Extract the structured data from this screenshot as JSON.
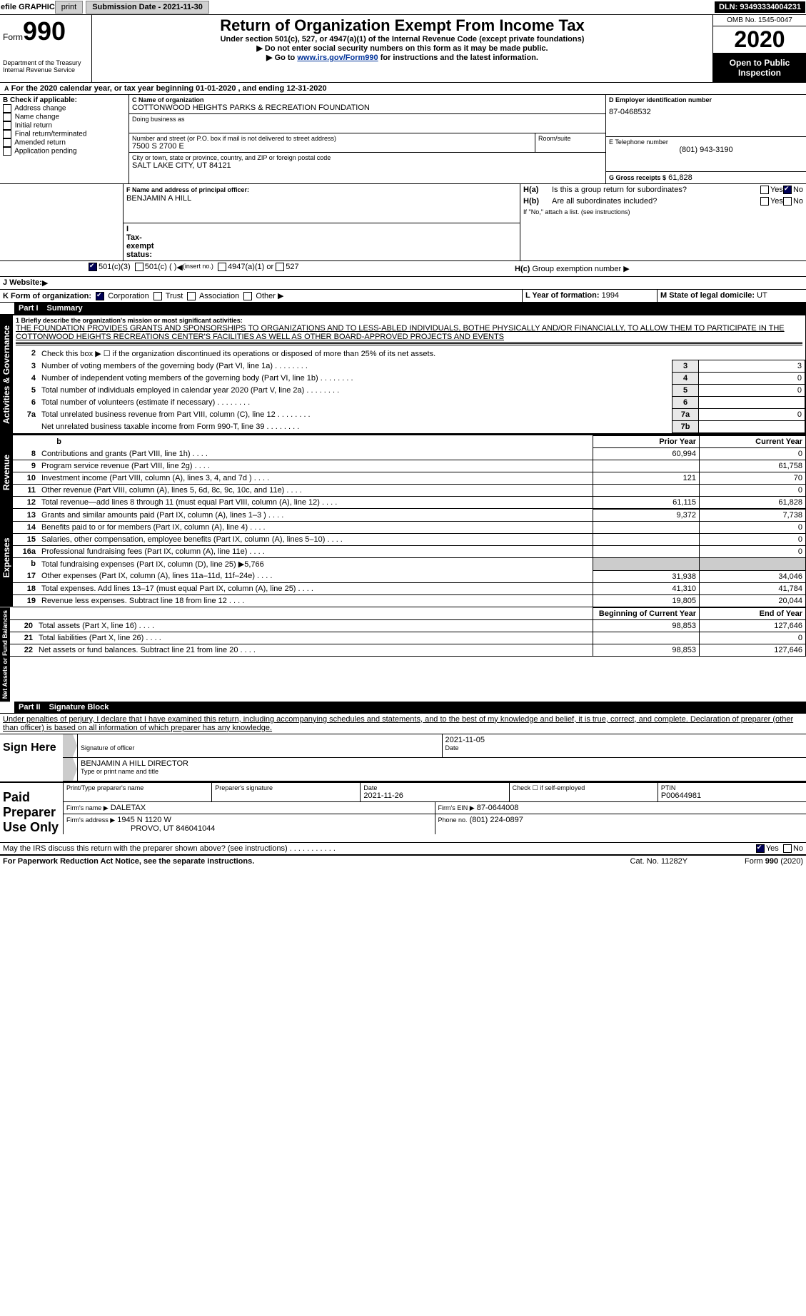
{
  "topbar": {
    "efile": "efile GRAPHIC",
    "print": "print",
    "subdate_label": "Submission Date - 2021-11-30",
    "dln_label": "DLN: 93493334004231"
  },
  "header": {
    "form_small": "Form",
    "form_num": "990",
    "dept": "Department of the Treasury\nInternal Revenue Service",
    "title": "Return of Organization Exempt From Income Tax",
    "sub1": "Under section 501(c), 527, or 4947(a)(1) of the Internal Revenue Code (except private foundations)",
    "sub2": "Do not enter social security numbers on this form as it may be made public.",
    "sub3_pre": "Go to ",
    "sub3_link": "www.irs.gov/Form990",
    "sub3_post": " for instructions and the latest information.",
    "omb": "OMB No. 1545-0047",
    "year": "2020",
    "open_pub": "Open to Public Inspection"
  },
  "period": {
    "text": "For the 2020 calendar year, or tax year beginning 01-01-2020    , and ending 12-31-2020",
    "prefix": "A"
  },
  "boxB": {
    "label": "B Check if applicable:",
    "items": [
      "Address change",
      "Name change",
      "Initial return",
      "Final return/terminated",
      "Amended return",
      "Application pending"
    ]
  },
  "boxC": {
    "name_lbl": "C Name of organization",
    "name": "COTTONWOOD HEIGHTS PARKS & RECREATION FOUNDATION",
    "dba_lbl": "Doing business as",
    "addr_lbl": "Number and street (or P.O. box if mail is not delivered to street address)",
    "room_lbl": "Room/suite",
    "addr": "7500 S 2700 E",
    "city_lbl": "City or town, state or province, country, and ZIP or foreign postal code",
    "city": "SALT LAKE CITY, UT  84121"
  },
  "boxD": {
    "lbl": "D Employer identification number",
    "val": "87-0468532"
  },
  "boxE": {
    "lbl": "E Telephone number",
    "val": "(801) 943-3190"
  },
  "boxG": {
    "lbl": "G Gross receipts $",
    "val": "61,828"
  },
  "boxF": {
    "lbl": "F  Name and address of principal officer:",
    "val": "BENJAMIN A HILL"
  },
  "boxH": {
    "a_lbl": "H(a)",
    "a_txt": "Is this a group return for subordinates?",
    "a_no_checked": true,
    "b_lbl": "H(b)",
    "b_txt": "Are all subordinates included?",
    "b_note": "If \"No,\" attach a list. (see instructions)",
    "c_lbl": "H(c)",
    "c_txt": "Group exemption number"
  },
  "boxI": {
    "lbl": "I    Tax-exempt status:",
    "o1": "501(c)(3)",
    "o2_pre": "501(c) (  )",
    "o2_ins": "(insert no.)",
    "o3": "4947(a)(1) or",
    "o4": "527"
  },
  "boxJ": {
    "lbl": "J    Website:"
  },
  "boxK": {
    "lbl": "K Form of organization:",
    "o1": "Corporation",
    "o2": "Trust",
    "o3": "Association",
    "o4": "Other"
  },
  "boxL": {
    "lbl": "L Year of formation:",
    "val": "1994"
  },
  "boxM": {
    "lbl": "M State of legal domicile:",
    "val": "UT"
  },
  "part1": {
    "hdr": "Part I",
    "title": "Summary"
  },
  "mission": {
    "line1_lbl": "1  Briefly describe the organization's mission or most significant activities:",
    "text": "THE FOUNDATION PROVIDES GRANTS AND SPONSORSHIPS TO ORGANIZATIONS AND TO LESS-ABLED INDIVIDUALS, BOTHE PHYSICALLY AND/OR FINANCIALLY, TO ALLOW THEM TO PARTICIPATE IN THE COTTONWOOD HEIGHTS RECREATIONS CENTER'S FACILITIES AS WELL AS OTHER BOARD-APPROVED PROJECTS AND EVENTS"
  },
  "gov_lines": [
    {
      "n": "2",
      "t": "Check this box ▶ ☐  if the organization discontinued its operations or disposed of more than 25% of its net assets.",
      "box": "",
      "v": ""
    },
    {
      "n": "3",
      "t": "Number of voting members of the governing body (Part VI, line 1a)",
      "box": "3",
      "v": "3"
    },
    {
      "n": "4",
      "t": "Number of independent voting members of the governing body (Part VI, line 1b)",
      "box": "4",
      "v": "0"
    },
    {
      "n": "5",
      "t": "Total number of individuals employed in calendar year 2020 (Part V, line 2a)",
      "box": "5",
      "v": "0"
    },
    {
      "n": "6",
      "t": "Total number of volunteers (estimate if necessary)",
      "box": "6",
      "v": ""
    },
    {
      "n": "7a",
      "t": "Total unrelated business revenue from Part VIII, column (C), line 12",
      "box": "7a",
      "v": "0"
    },
    {
      "n": "",
      "t": "Net unrelated business taxable income from Form 990-T, line 39",
      "box": "7b",
      "v": ""
    }
  ],
  "vtabs": {
    "gov": "Activities & Governance",
    "rev": "Revenue",
    "exp": "Expenses",
    "net": "Net Assets or Fund Balances"
  },
  "cols": {
    "prior": "Prior Year",
    "curr": "Current Year",
    "beg": "Beginning of Current Year",
    "end": "End of Year"
  },
  "rev_lines": [
    {
      "n": "8",
      "t": "Contributions and grants (Part VIII, line 1h)",
      "p": "60,994",
      "c": "0"
    },
    {
      "n": "9",
      "t": "Program service revenue (Part VIII, line 2g)",
      "p": "",
      "c": "61,758"
    },
    {
      "n": "10",
      "t": "Investment income (Part VIII, column (A), lines 3, 4, and 7d )",
      "p": "121",
      "c": "70"
    },
    {
      "n": "11",
      "t": "Other revenue (Part VIII, column (A), lines 5, 6d, 8c, 9c, 10c, and 11e)",
      "p": "",
      "c": "0"
    },
    {
      "n": "12",
      "t": "Total revenue—add lines 8 through 11 (must equal Part VIII, column (A), line 12)",
      "p": "61,115",
      "c": "61,828"
    }
  ],
  "exp_lines": [
    {
      "n": "13",
      "t": "Grants and similar amounts paid (Part IX, column (A), lines 1–3 )",
      "p": "9,372",
      "c": "7,738"
    },
    {
      "n": "14",
      "t": "Benefits paid to or for members (Part IX, column (A), line 4)",
      "p": "",
      "c": "0"
    },
    {
      "n": "15",
      "t": "Salaries, other compensation, employee benefits (Part IX, column (A), lines 5–10)",
      "p": "",
      "c": "0"
    },
    {
      "n": "16a",
      "t": "Professional fundraising fees (Part IX, column (A), line 11e)",
      "p": "",
      "c": "0"
    },
    {
      "n": "b",
      "t": "Total fundraising expenses (Part IX, column (D), line 25) ▶5,766",
      "p": "—",
      "c": "—"
    },
    {
      "n": "17",
      "t": "Other expenses (Part IX, column (A), lines 11a–11d, 11f–24e)",
      "p": "31,938",
      "c": "34,046"
    },
    {
      "n": "18",
      "t": "Total expenses. Add lines 13–17 (must equal Part IX, column (A), line 25)",
      "p": "41,310",
      "c": "41,784"
    },
    {
      "n": "19",
      "t": "Revenue less expenses. Subtract line 18 from line 12",
      "p": "19,805",
      "c": "20,044"
    }
  ],
  "net_lines": [
    {
      "n": "20",
      "t": "Total assets (Part X, line 16)",
      "p": "98,853",
      "c": "127,646"
    },
    {
      "n": "21",
      "t": "Total liabilities (Part X, line 26)",
      "p": "",
      "c": "0"
    },
    {
      "n": "22",
      "t": "Net assets or fund balances. Subtract line 21 from line 20",
      "p": "98,853",
      "c": "127,646"
    }
  ],
  "part2": {
    "hdr": "Part II",
    "title": "Signature Block"
  },
  "penalties": "Under penalties of perjury, I declare that I have examined this return, including accompanying schedules and statements, and to the best of my knowledge and belief, it is true, correct, and complete. Declaration of preparer (other than officer) is based on all information of which preparer has any knowledge.",
  "sign": {
    "here": "Sign Here",
    "sig_lbl": "Signature of officer",
    "date_lbl": "Date",
    "date": "2021-11-05",
    "name": "BENJAMIN A HILL  DIRECTOR",
    "name_lbl": "Type or print name and title"
  },
  "paid": {
    "label": "Paid Preparer Use Only",
    "print_lbl": "Print/Type preparer's name",
    "sig_lbl": "Preparer's signature",
    "date_lbl": "Date",
    "date": "2021-11-26",
    "check_lbl": "Check ☐ if self-employed",
    "ptin_lbl": "PTIN",
    "ptin": "P00644981",
    "firm_name_lbl": "Firm's name    ▶",
    "firm_name": "DALETAX",
    "firm_ein_lbl": "Firm's EIN ▶",
    "firm_ein": "87-0644008",
    "firm_addr_lbl": "Firm's address ▶",
    "firm_addr": "1945 N 1120 W",
    "firm_city": "PROVO, UT  846041044",
    "phone_lbl": "Phone no.",
    "phone": "(801) 224-0897"
  },
  "irs_discuss": "May the IRS discuss this return with the preparer shown above? (see instructions)",
  "yes": "Yes",
  "no": "No",
  "footer": {
    "pra": "For Paperwork Reduction Act Notice, see the separate instructions.",
    "cat": "Cat. No. 11282Y",
    "form": "Form 990 (2020)"
  }
}
